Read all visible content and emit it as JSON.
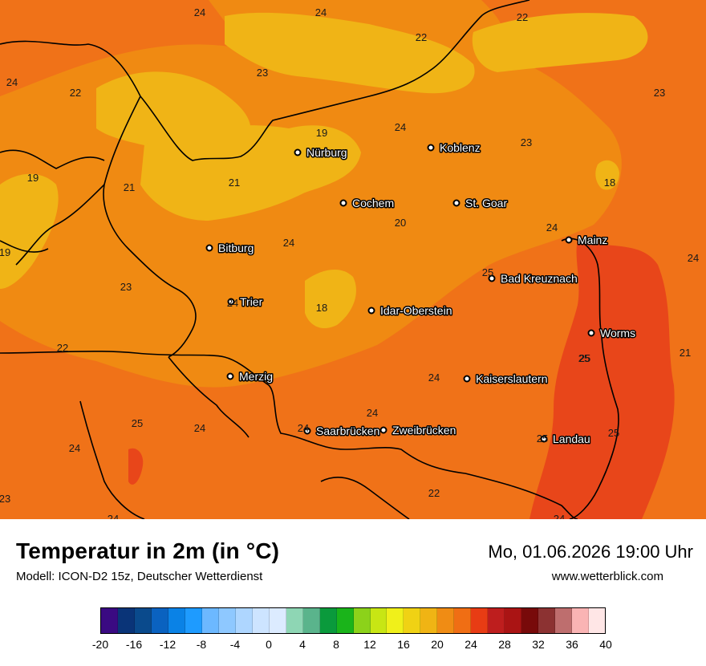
{
  "map": {
    "cities": [
      {
        "name": "Nürburg"
      },
      {
        "name": "Koblenz"
      },
      {
        "name": "Cochem"
      },
      {
        "name": "St. Goar"
      },
      {
        "name": "Mainz"
      },
      {
        "name": "Bitburg"
      },
      {
        "name": "Bad Kreuznach"
      },
      {
        "name": "Trier"
      },
      {
        "name": "Idar-Oberstein"
      },
      {
        "name": "Worms"
      },
      {
        "name": "Merzig"
      },
      {
        "name": "Kaiserslautern"
      },
      {
        "name": "Saarbrücken"
      },
      {
        "name": "Zweibrücken"
      },
      {
        "name": "Landau"
      }
    ],
    "temperature_labels": [
      "24",
      "24",
      "22",
      "22",
      "22",
      "24",
      "23",
      "23",
      "19",
      "24",
      "23",
      "19",
      "21",
      "21",
      "18",
      "20",
      "24",
      "24",
      "19",
      "24",
      "25",
      "23",
      "24",
      "18",
      "22",
      "25",
      "21",
      "24",
      "24",
      "24",
      "25",
      "24",
      "24",
      "25",
      "25",
      "24",
      "22",
      "23",
      "24",
      "25"
    ],
    "colors": {
      "yellow_zone": "#f0b416",
      "light_orange_zone": "#f08a12",
      "orange_zone": "#f07218",
      "red_orange_zone": "#e8461a",
      "border_line": "#000000"
    }
  },
  "footer": {
    "title": "Temperatur in 2m (in °C)",
    "model": "Modell: ICON-D2 15z, Deutscher Wetterdienst",
    "datetime": "Mo, 01.06.2026 19:00 Uhr",
    "site": "www.wetterblick.com"
  },
  "colorbar": {
    "colors": [
      "#3a0a82",
      "#0a3478",
      "#0a4a8c",
      "#0a62c0",
      "#0a82e6",
      "#1e9bff",
      "#6cb8ff",
      "#8ec8ff",
      "#aed6ff",
      "#cde4ff",
      "#dcebff",
      "#8ed6b4",
      "#5ab48c",
      "#0a9a3c",
      "#1ab41a",
      "#8cd21a",
      "#c8e614",
      "#f0f01a",
      "#f0d214",
      "#f0b414",
      "#f08c14",
      "#f06e14",
      "#e83c14",
      "#be1e1e",
      "#aa1414",
      "#780a0a",
      "#8c3232",
      "#be6e6e",
      "#fab4b4",
      "#ffe6e6"
    ],
    "tick_labels": [
      "-20",
      "-16",
      "-12",
      "-8",
      "-4",
      "0",
      "4",
      "8",
      "12",
      "16",
      "20",
      "24",
      "28",
      "32",
      "36",
      "40"
    ]
  }
}
